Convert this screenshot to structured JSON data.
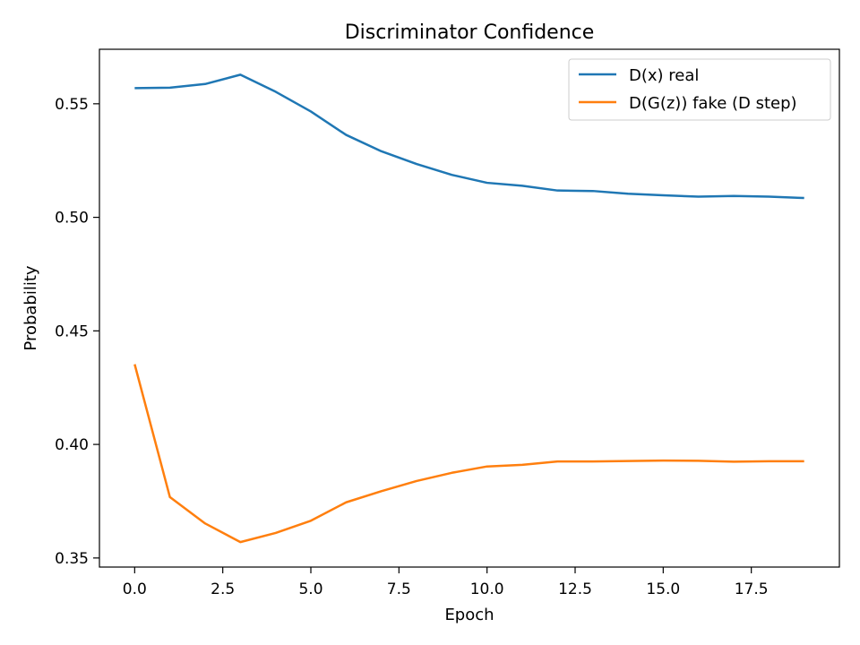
{
  "chart_data": {
    "type": "line",
    "title": "Discriminator Confidence",
    "xlabel": "Epoch",
    "ylabel": "Probability",
    "xlim": [
      -1.0,
      20.0
    ],
    "ylim": [
      0.346,
      0.574
    ],
    "xticks": [
      0.0,
      2.5,
      5.0,
      7.5,
      10.0,
      12.5,
      15.0,
      17.5
    ],
    "xtick_labels": [
      "0.0",
      "2.5",
      "5.0",
      "7.5",
      "10.0",
      "12.5",
      "15.0",
      "17.5"
    ],
    "yticks": [
      0.35,
      0.4,
      0.45,
      0.5,
      0.55
    ],
    "ytick_labels": [
      "0.35",
      "0.40",
      "0.45",
      "0.50",
      "0.55"
    ],
    "grid": false,
    "legend_position": "top-right",
    "x": [
      0,
      1,
      2,
      3,
      4,
      5,
      6,
      7,
      8,
      9,
      10,
      11,
      12,
      13,
      14,
      15,
      16,
      17,
      18,
      19
    ],
    "series": [
      {
        "name": "D(x) real",
        "color": "#1f77b4",
        "values": [
          0.5569,
          0.5571,
          0.5587,
          0.5628,
          0.5553,
          0.5466,
          0.5363,
          0.5291,
          0.5235,
          0.5187,
          0.5152,
          0.5139,
          0.5118,
          0.5116,
          0.5104,
          0.5097,
          0.5091,
          0.5094,
          0.5091,
          0.5085
        ]
      },
      {
        "name": "D(G(z)) fake (D step)",
        "color": "#ff7f0e",
        "values": [
          0.4353,
          0.3768,
          0.3652,
          0.357,
          0.361,
          0.3664,
          0.3745,
          0.3794,
          0.3839,
          0.3875,
          0.3903,
          0.391,
          0.3925,
          0.3925,
          0.3927,
          0.3929,
          0.3928,
          0.3924,
          0.3926,
          0.3926
        ]
      }
    ]
  }
}
